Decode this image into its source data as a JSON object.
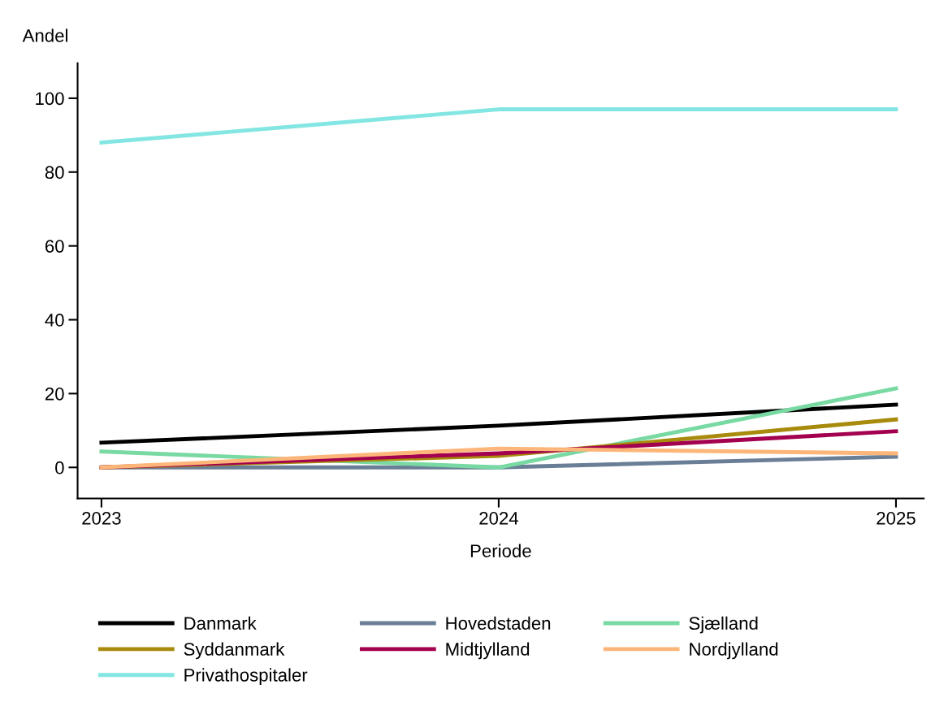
{
  "chart_data": {
    "type": "line",
    "xlabel": "Periode",
    "ylabel": "Andel",
    "x": [
      2023,
      2024,
      2025
    ],
    "xlim": [
      2022.94,
      2025.07
    ],
    "xticks": [
      2023,
      2024,
      2025
    ],
    "ylim": [
      -8.4,
      109.5
    ],
    "yticks": [
      0,
      20,
      40,
      60,
      80,
      100
    ],
    "grid": false,
    "legend": "bottom",
    "marker": "none",
    "line_style": "solid",
    "series": [
      {
        "name": "Danmark",
        "color": "#000000",
        "values": [
          6.7,
          11.3,
          17
        ]
      },
      {
        "name": "Hovedstaden",
        "color": "#6a7f96",
        "values": [
          0,
          0,
          2.9
        ]
      },
      {
        "name": "Sjælland",
        "color": "#78d9a2",
        "values": [
          4.3,
          0,
          21.4
        ]
      },
      {
        "name": "Syddanmark",
        "color": "#a88a0c",
        "values": [
          0,
          3.1,
          13
        ]
      },
      {
        "name": "Midtjylland",
        "color": "#a3004f",
        "values": [
          0,
          3.8,
          9.8
        ]
      },
      {
        "name": "Nordjylland",
        "color": "#fdb679",
        "values": [
          0,
          5.1,
          3.8
        ]
      },
      {
        "name": "Privathospitaler",
        "color": "#83e6e2",
        "values": [
          88,
          97,
          97
        ]
      }
    ]
  }
}
